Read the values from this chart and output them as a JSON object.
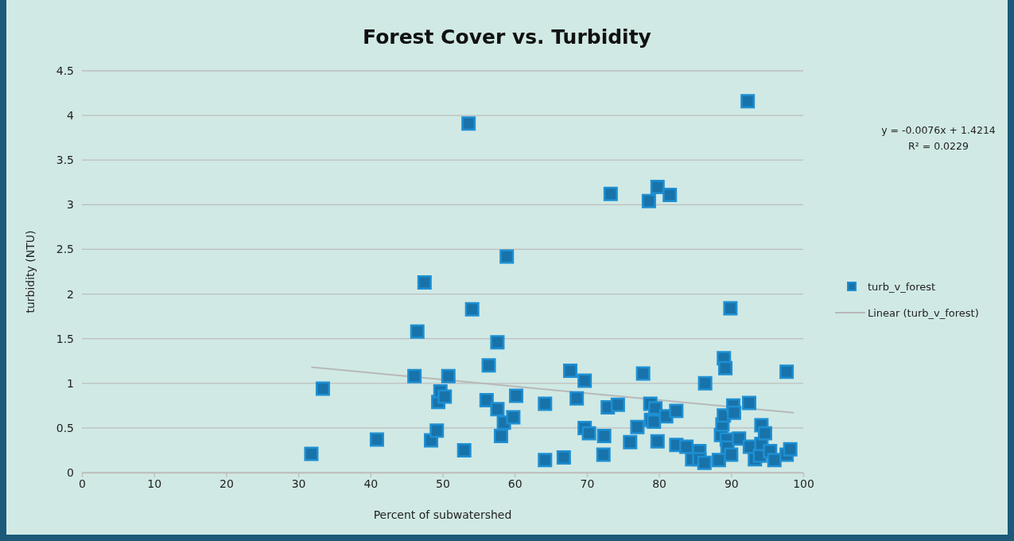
{
  "chart_data": {
    "type": "scatter",
    "title": "Forest Cover vs. Turbidity",
    "xlabel": "Percent of subwatershed",
    "ylabel": "turbidity (NTU)",
    "xlim": [
      0,
      100
    ],
    "xticks": [
      0,
      10,
      20,
      30,
      40,
      50,
      60,
      70,
      80,
      90,
      100
    ],
    "ylim": [
      0,
      4.5
    ],
    "yticks": [
      0,
      0.5,
      1,
      1.5,
      2,
      2.5,
      3,
      3.5,
      4,
      4.5
    ],
    "grid": "y",
    "legend": "right",
    "marker": "square",
    "annotations": [
      "y = -0.0076x + 1.4214",
      "R² = 0.0229"
    ],
    "series": [
      {
        "name": "turb_v_forest",
        "color": "#1e8fd2",
        "x": [
          31.8,
          33.4,
          40.9,
          46.1,
          46.5,
          47.5,
          48.4,
          49.2,
          49.4,
          49.7,
          50.3,
          50.8,
          53.0,
          53.6,
          54.1,
          56.1,
          56.4,
          57.6,
          57.6,
          58.1,
          58.5,
          58.9,
          59.8,
          60.2,
          64.2,
          64.2,
          66.8,
          67.7,
          69.7,
          68.6,
          69.7,
          70.3,
          72.3,
          72.4,
          72.9,
          73.3,
          74.3,
          76.0,
          77.0,
          77.8,
          78.6,
          79.8,
          81.5,
          78.8,
          79.5,
          78.9,
          79.3,
          79.8,
          81.0,
          82.4,
          82.4,
          83.8,
          84.6,
          85.6,
          85.6,
          86.3,
          86.4,
          88.3,
          89.0,
          89.2,
          89.9,
          88.6,
          88.8,
          89.0,
          89.4,
          89.5,
          90.0,
          90.3,
          90.4,
          91.1,
          92.3,
          92.5,
          92.6,
          93.3,
          94.0,
          94.2,
          94.2,
          94.7,
          95.4,
          96.0,
          97.7,
          97.7,
          98.2
        ],
        "values": [
          0.21,
          0.94,
          0.37,
          1.08,
          1.58,
          2.13,
          0.36,
          0.47,
          0.79,
          0.91,
          0.85,
          1.08,
          0.25,
          3.91,
          1.83,
          0.81,
          1.2,
          1.46,
          0.71,
          0.41,
          0.56,
          2.42,
          0.62,
          0.86,
          0.77,
          0.14,
          0.17,
          1.14,
          1.03,
          0.83,
          0.5,
          0.44,
          0.2,
          0.41,
          0.73,
          3.12,
          0.76,
          0.34,
          0.51,
          1.11,
          3.04,
          3.2,
          3.11,
          0.77,
          0.72,
          0.59,
          0.57,
          0.35,
          0.63,
          0.69,
          0.31,
          0.29,
          0.15,
          0.24,
          0.15,
          0.11,
          1.0,
          0.14,
          1.28,
          1.17,
          1.84,
          0.42,
          0.54,
          0.64,
          0.37,
          0.28,
          0.2,
          0.75,
          0.67,
          0.38,
          4.16,
          0.78,
          0.29,
          0.15,
          0.19,
          0.53,
          0.32,
          0.44,
          0.24,
          0.14,
          1.13,
          0.2,
          0.26
        ]
      },
      {
        "name": "Linear (turb_v_forest)",
        "color": "#b8b8b8",
        "type": "line",
        "marker": "none",
        "x": [
          31.8,
          98.7
        ],
        "values": [
          1.18,
          0.67
        ]
      }
    ]
  }
}
